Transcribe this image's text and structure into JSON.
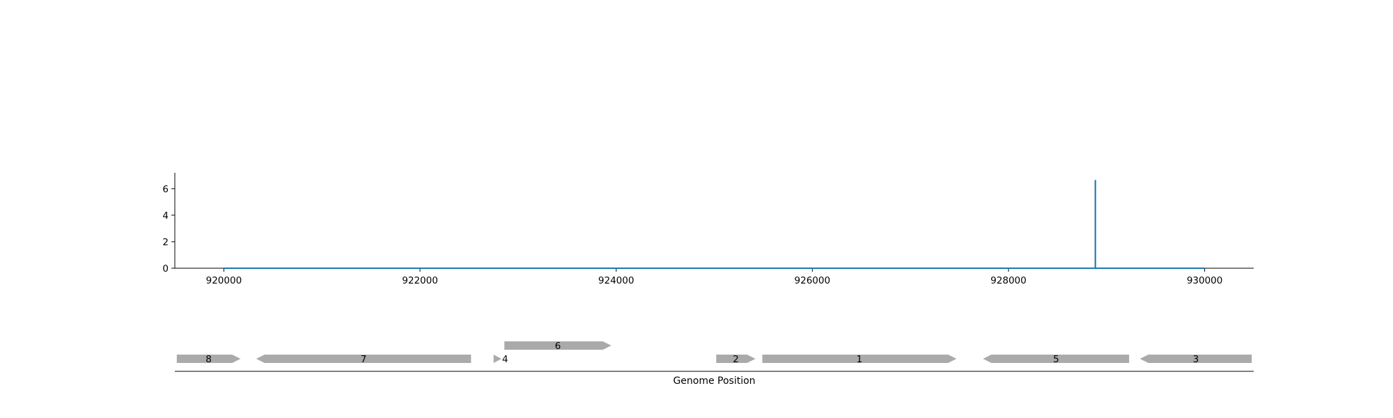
{
  "chart_data": [
    {
      "type": "line",
      "title": "",
      "xlabel": "",
      "ylabel": "",
      "xlim": [
        919500,
        930500
      ],
      "ylim": [
        0,
        7.2
      ],
      "x_ticks": [
        920000,
        922000,
        924000,
        926000,
        928000,
        930000
      ],
      "x_tick_labels": [
        "920000",
        "922000",
        "924000",
        "926000",
        "928000",
        "930000"
      ],
      "y_ticks": [
        0,
        2,
        4,
        6
      ],
      "y_tick_labels": [
        "0",
        "2",
        "4",
        "6"
      ],
      "grid": false,
      "series": [
        {
          "color": "#1f77b4",
          "x": [
            920000,
            928885,
            928885,
            928886,
            928886,
            930000
          ],
          "y": [
            0,
            0,
            6.6,
            6.6,
            0,
            0
          ]
        }
      ]
    },
    {
      "type": "gene-map",
      "xlabel": "Genome Position",
      "xlim": [
        919500,
        930500
      ],
      "color": "#aaaaaa",
      "genes": [
        {
          "label": "8",
          "start": 919520,
          "end": 920170,
          "strand": "+",
          "row": 0
        },
        {
          "label": "7",
          "start": 920330,
          "end": 922520,
          "strand": "-",
          "row": 0
        },
        {
          "label": "4",
          "start": 922750,
          "end": 922830,
          "strand": "+",
          "row": 0
        },
        {
          "label": "6",
          "start": 922860,
          "end": 923950,
          "strand": "+",
          "row": 1
        },
        {
          "label": "2",
          "start": 925020,
          "end": 925420,
          "strand": "+",
          "row": 0
        },
        {
          "label": "1",
          "start": 925490,
          "end": 927470,
          "strand": "+",
          "row": 0
        },
        {
          "label": "5",
          "start": 927740,
          "end": 929230,
          "strand": "-",
          "row": 0
        },
        {
          "label": "3",
          "start": 929340,
          "end": 930480,
          "strand": "-",
          "row": 0
        }
      ]
    }
  ]
}
